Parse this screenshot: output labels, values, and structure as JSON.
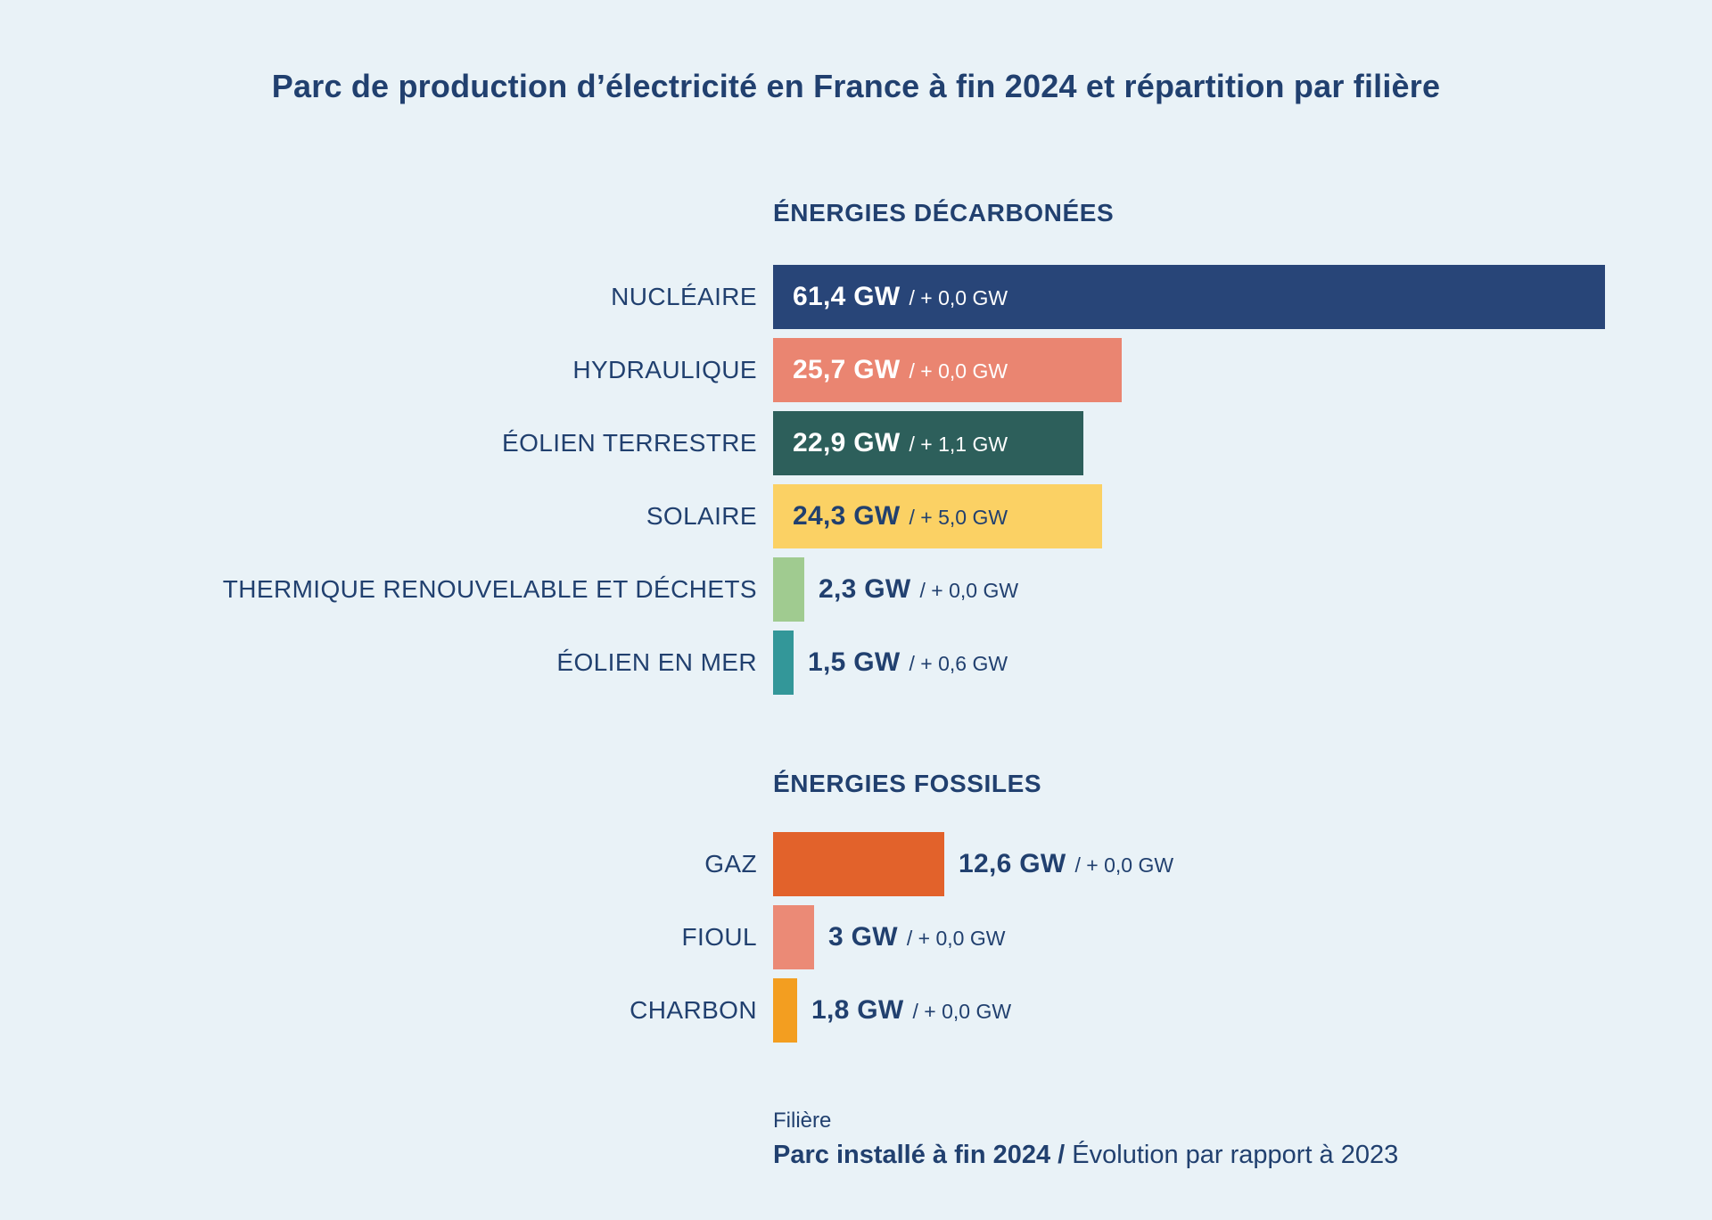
{
  "title": "Parc de production d’électricité en France à fin 2024 et répartition par filière",
  "colors": {
    "background": "#E9F2F7",
    "text_navy": "#21406F",
    "bar_nuclear": "#284578",
    "bar_hydraulic": "#EA8571",
    "bar_onshore_wind": "#2D5F5B",
    "bar_solar": "#FBD164",
    "bar_renewable_thermal": "#A0CB90",
    "bar_offshore_wind": "#339799",
    "bar_gas": "#E2622B",
    "bar_oil": "#EB8A76",
    "bar_coal": "#F39E20"
  },
  "footer": {
    "line1": "Filière",
    "line2_bold": "Parc installé à fin 2024 /",
    "line2_regular": " Évolution par rapport à 2023"
  },
  "chart_data": {
    "type": "bar",
    "orientation": "horizontal",
    "unit": "GW",
    "title": "Parc de production d’électricité en France à fin 2024 et répartition par filière",
    "legend_note": "Parc installé à fin 2024 / Évolution par rapport à 2023",
    "max_value_gw": 61.4,
    "sections": [
      {
        "header": "ÉNERGIES DÉCARBONÉES",
        "items": [
          {
            "label": "NUCLÉAIRE",
            "value_gw": 61.4,
            "delta_gw": 0.0,
            "value_label": "61,4 GW",
            "delta_label": "/ + 0,0 GW",
            "color": "#284578",
            "text_position": "inside",
            "text_color": "#FFFFFF"
          },
          {
            "label": "HYDRAULIQUE",
            "value_gw": 25.7,
            "delta_gw": 0.0,
            "value_label": "25,7 GW",
            "delta_label": "/ + 0,0 GW",
            "color": "#EA8571",
            "text_position": "inside",
            "text_color": "#FFFFFF"
          },
          {
            "label": "ÉOLIEN TERRESTRE",
            "value_gw": 22.9,
            "delta_gw": 1.1,
            "value_label": "22,9 GW",
            "delta_label": "/ + 1,1 GW",
            "color": "#2D5F5B",
            "text_position": "inside",
            "text_color": "#FFFFFF"
          },
          {
            "label": "SOLAIRE",
            "value_gw": 24.3,
            "delta_gw": 5.0,
            "value_label": "24,3 GW",
            "delta_label": "/ + 5,0 GW",
            "color": "#FBD164",
            "text_position": "inside",
            "text_color": "#21406F"
          },
          {
            "label": "THERMIQUE RENOUVELABLE ET DÉCHETS",
            "value_gw": 2.3,
            "delta_gw": 0.0,
            "value_label": "2,3 GW",
            "delta_label": "/ + 0,0 GW",
            "color": "#A0CB90",
            "text_position": "outside",
            "text_color": "#21406F"
          },
          {
            "label": "ÉOLIEN EN MER",
            "value_gw": 1.5,
            "delta_gw": 0.6,
            "value_label": "1,5 GW",
            "delta_label": "/ + 0,6 GW",
            "color": "#339799",
            "text_position": "outside",
            "text_color": "#21406F"
          }
        ]
      },
      {
        "header": "ÉNERGIES FOSSILES",
        "items": [
          {
            "label": "GAZ",
            "value_gw": 12.6,
            "delta_gw": 0.0,
            "value_label": "12,6 GW",
            "delta_label": "/ + 0,0 GW",
            "color": "#E2622B",
            "text_position": "outside",
            "text_color": "#21406F"
          },
          {
            "label": "FIOUL",
            "value_gw": 3.0,
            "delta_gw": 0.0,
            "value_label": "3 GW",
            "delta_label": "/ + 0,0 GW",
            "color": "#EB8A76",
            "text_position": "outside",
            "text_color": "#21406F"
          },
          {
            "label": "CHARBON",
            "value_gw": 1.8,
            "delta_gw": 0.0,
            "value_label": "1,8 GW",
            "delta_label": "/ + 0,0 GW",
            "color": "#F39E20",
            "text_position": "outside",
            "text_color": "#21406F"
          }
        ]
      }
    ]
  }
}
